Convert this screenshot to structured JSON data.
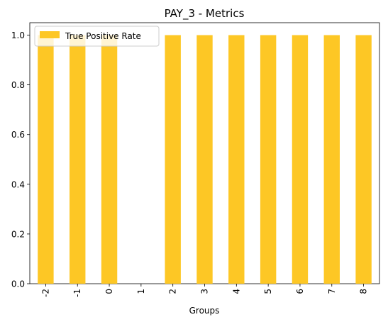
{
  "chart_data": {
    "type": "bar",
    "title": "PAY_3 - Metrics",
    "xlabel": "Groups",
    "ylabel": "",
    "categories": [
      "-2",
      "-1",
      "0",
      "1",
      "2",
      "3",
      "4",
      "5",
      "6",
      "7",
      "8"
    ],
    "series": [
      {
        "name": "True Positive Rate",
        "values": [
          1.0,
          1.0,
          1.0,
          0.0,
          1.0,
          1.0,
          1.0,
          1.0,
          1.0,
          1.0,
          1.0
        ],
        "color": "#fdc725"
      }
    ],
    "ylim": [
      0,
      1.05
    ],
    "yticks": [
      0.0,
      0.2,
      0.4,
      0.6,
      0.8,
      1.0
    ],
    "ytick_labels": [
      "0.0",
      "0.2",
      "0.4",
      "0.6",
      "0.8",
      "1.0"
    ],
    "x_tick_rotation": "vertical",
    "grid": false,
    "legend_position": "upper-left"
  }
}
